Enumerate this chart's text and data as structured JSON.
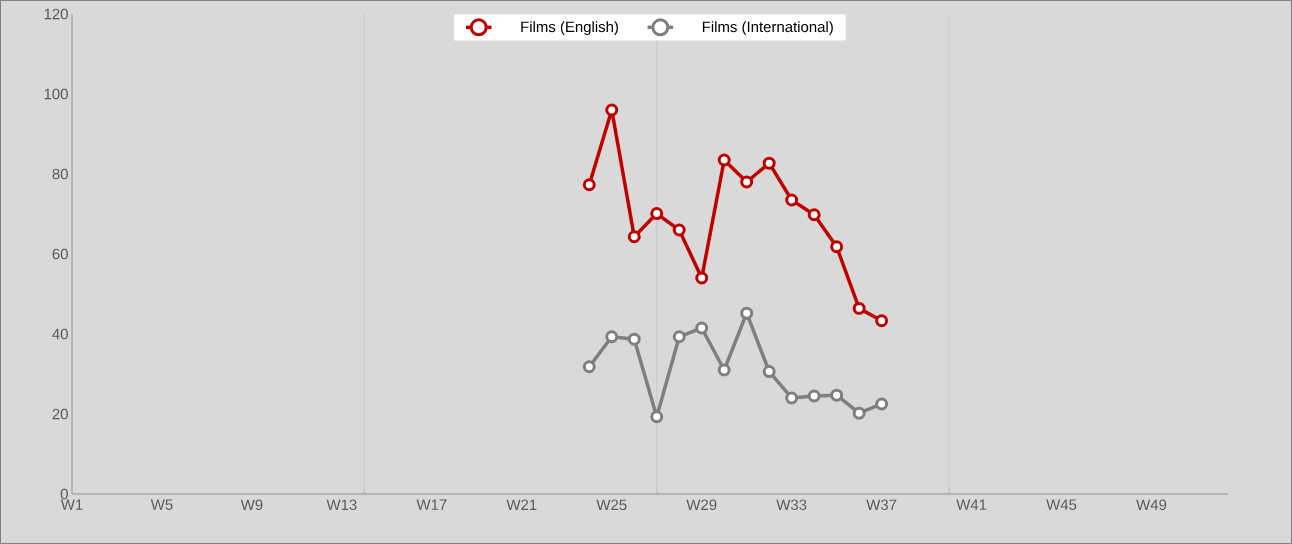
{
  "chart_data": {
    "type": "line",
    "categories": [
      "W1",
      null,
      null,
      null,
      "W5",
      null,
      null,
      null,
      "W9",
      null,
      null,
      null,
      "W13",
      null,
      null,
      null,
      "W17",
      null,
      null,
      null,
      "W21",
      null,
      null,
      null,
      "W25",
      null,
      null,
      null,
      "W29",
      null,
      null,
      null,
      "W33",
      null,
      null,
      null,
      "W37",
      null,
      null,
      null,
      "W41",
      null,
      null,
      null,
      "W45",
      null,
      null,
      null,
      "W49",
      null,
      null,
      null
    ],
    "series": [
      {
        "name": "Films (English)",
        "color": "#c00000",
        "values": [
          null,
          null,
          null,
          null,
          null,
          null,
          null,
          null,
          null,
          null,
          null,
          null,
          null,
          null,
          null,
          null,
          null,
          null,
          null,
          null,
          null,
          null,
          null,
          77.3,
          96,
          64.3,
          70.1,
          66,
          54,
          83.5,
          78,
          82.7,
          73.5,
          69.8,
          61.8,
          46.4,
          43.3,
          null,
          null,
          null,
          null,
          null,
          null,
          null,
          null,
          null,
          null,
          null,
          null,
          null,
          null,
          null
        ]
      },
      {
        "name": "Films (International)",
        "color": "#7f7f7f",
        "values": [
          null,
          null,
          null,
          null,
          null,
          null,
          null,
          null,
          null,
          null,
          null,
          null,
          null,
          null,
          null,
          null,
          null,
          null,
          null,
          null,
          null,
          null,
          null,
          31.8,
          39.3,
          38.7,
          19.3,
          39.3,
          41.5,
          31,
          45.2,
          30.6,
          24,
          24.5,
          24.7,
          20.2,
          22.5,
          null,
          null,
          null,
          null,
          null,
          null,
          null,
          null,
          null,
          null,
          null,
          null,
          null,
          null,
          null
        ]
      }
    ],
    "ylim": [
      0,
      120
    ],
    "yticks": [
      0,
      20,
      40,
      60,
      80,
      100,
      120
    ],
    "grid": "x",
    "legend": "top",
    "marker": "circle",
    "line_style": "solid"
  }
}
